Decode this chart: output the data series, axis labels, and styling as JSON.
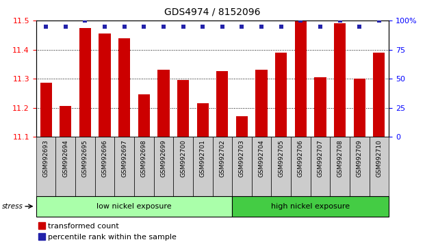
{
  "title": "GDS4974 / 8152096",
  "samples": [
    "GSM992693",
    "GSM992694",
    "GSM992695",
    "GSM992696",
    "GSM992697",
    "GSM992698",
    "GSM992699",
    "GSM992700",
    "GSM992701",
    "GSM992702",
    "GSM992703",
    "GSM992704",
    "GSM992705",
    "GSM992706",
    "GSM992707",
    "GSM992708",
    "GSM992709",
    "GSM992710"
  ],
  "transformed_counts": [
    11.285,
    11.205,
    11.475,
    11.455,
    11.44,
    11.245,
    11.33,
    11.295,
    11.215,
    11.325,
    11.17,
    11.33,
    11.39,
    11.5,
    11.305,
    11.49,
    11.3,
    11.39
  ],
  "percentile_ranks": [
    95,
    95,
    100,
    95,
    95,
    95,
    95,
    95,
    95,
    95,
    95,
    95,
    95,
    100,
    95,
    100,
    95,
    100
  ],
  "bar_color": "#CC0000",
  "dot_color": "#2222AA",
  "ylim_left": [
    11.1,
    11.5
  ],
  "ylim_right": [
    0,
    100
  ],
  "yticks_left": [
    11.1,
    11.2,
    11.3,
    11.4,
    11.5
  ],
  "yticks_right": [
    0,
    25,
    50,
    75,
    100
  ],
  "ytick_labels_right": [
    "0",
    "25",
    "50",
    "75",
    "100%"
  ],
  "low_group": "low nickel exposure",
  "high_group": "high nickel exposure",
  "low_count": 10,
  "high_count": 8,
  "stress_label": "stress",
  "legend_bar": "transformed count",
  "legend_dot": "percentile rank within the sample",
  "background_color": "#ffffff",
  "label_bg": "#cccccc",
  "group_low_color": "#aaffaa",
  "group_high_color": "#44cc44"
}
